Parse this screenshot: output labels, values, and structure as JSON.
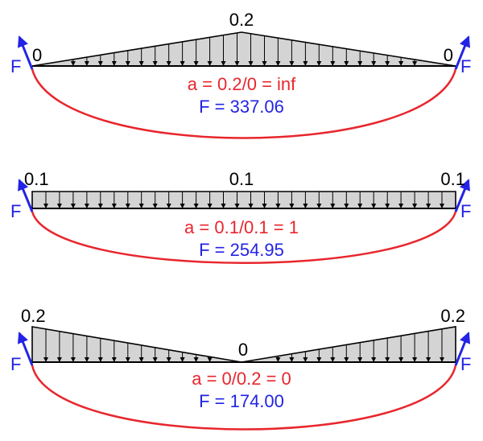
{
  "panels": [
    {
      "left_value": "0",
      "mid_value": "0.2",
      "right_value": "0",
      "force_label_left": "F",
      "force_label_right": "F",
      "ratio_text": "a = 0.2/0 = inf",
      "force_text": "F = 337.06",
      "load_shape": "triangle-peak-center"
    },
    {
      "left_value": "0.1",
      "mid_value": "0.1",
      "right_value": "0.1",
      "force_label_left": "F",
      "force_label_right": "F",
      "ratio_text": "a = 0.1/0.1 = 1",
      "force_text": "F = 254.95",
      "load_shape": "uniform"
    },
    {
      "left_value": "0.2",
      "mid_value": "0",
      "right_value": "0.2",
      "force_label_left": "F",
      "force_label_right": "F",
      "ratio_text": "a = 0/0.2 = 0",
      "force_text": "F = 174.00",
      "load_shape": "v-zero-center"
    }
  ],
  "colors": {
    "load_fill": "#d4d4d4",
    "outline": "#000000",
    "cable": "#e8262d",
    "force": "#2323e6"
  }
}
